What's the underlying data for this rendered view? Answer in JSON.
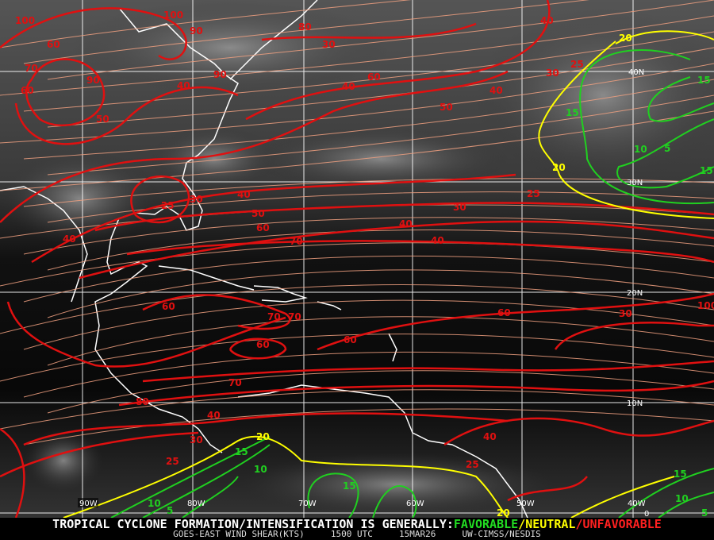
{
  "map": {
    "product": "GOES-EAST WIND SHEAR(KTS)",
    "time": "1500 UTC",
    "date": "15MAR26",
    "source": "UW-CIMSS/NESDIS",
    "headline_prefix": "TROPICAL CYCLONE FORMATION/INTENSIFICATION IS GENERALLY:",
    "legend": [
      {
        "label": "FAVORABLE",
        "color": "#22dd22"
      },
      {
        "label": "NEUTRAL",
        "color": "#ffff00"
      },
      {
        "label": "UNFAVORABLE",
        "color": "#ff2020"
      }
    ],
    "separator": "/",
    "longitude_labels": [
      "90W",
      "80W",
      "70W",
      "60W",
      "50W",
      "40W"
    ],
    "latitude_labels": [
      "40N",
      "30N",
      "20N",
      "10N",
      "0"
    ],
    "colors": {
      "high_shear": "#e01010",
      "neutral": "#ffff00",
      "low_shear": "#20d020",
      "streamline": "#f0a080",
      "coastline": "#ffffff",
      "grid": "#ffffff"
    },
    "contour_labels": [
      "100",
      "100",
      "90",
      "80",
      "30",
      "40",
      "90",
      "60",
      "70",
      "60",
      "90",
      "40",
      "50",
      "60",
      "40",
      "50",
      "40",
      "30",
      "25",
      "20",
      "15",
      "15",
      "20",
      "10",
      "5",
      "15",
      "25",
      "40",
      "40",
      "25",
      "50",
      "40",
      "60",
      "30",
      "30",
      "70",
      "40",
      "100",
      "60",
      "30",
      "70",
      "70",
      "60",
      "60",
      "70",
      "60",
      "80",
      "40",
      "30",
      "25",
      "20",
      "15",
      "10",
      "10",
      "5",
      "15",
      "20",
      "25",
      "40",
      "15",
      "10",
      "5"
    ]
  }
}
